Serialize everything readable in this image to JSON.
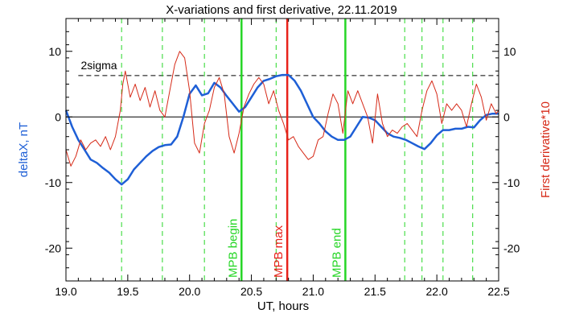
{
  "chart_data": {
    "type": "line",
    "title": "X-variations and first derivative, 22.11.2019",
    "xlabel": "UT, hours",
    "ylabel": "deltaX, nT",
    "ylabel_right": "First derivative*10",
    "xlim": [
      19.0,
      22.5
    ],
    "ylim": [
      -25,
      15
    ],
    "ylim_right": [
      -25,
      15
    ],
    "x_ticks": [
      "19.0",
      "19.5",
      "20.0",
      "20.5",
      "21.0",
      "21.5",
      "22.0",
      "22.5"
    ],
    "y_ticks": [
      "-20",
      "-10",
      "0",
      "10"
    ],
    "y_ticks_right": [
      "-20",
      "-10",
      "0",
      "10"
    ],
    "zero_line": 0,
    "sigma_line": {
      "label": "2sigma",
      "value": 6.3
    },
    "series": [
      {
        "name": "deltaX",
        "color": "#1e5fd6",
        "axis": "left",
        "x": [
          19.0,
          19.05,
          19.1,
          19.15,
          19.2,
          19.25,
          19.3,
          19.35,
          19.4,
          19.45,
          19.5,
          19.55,
          19.6,
          19.65,
          19.7,
          19.75,
          19.8,
          19.85,
          19.9,
          19.95,
          20.0,
          20.05,
          20.1,
          20.15,
          20.2,
          20.25,
          20.3,
          20.35,
          20.4,
          20.45,
          20.5,
          20.55,
          20.6,
          20.65,
          20.7,
          20.75,
          20.8,
          20.85,
          20.9,
          20.95,
          21.0,
          21.05,
          21.1,
          21.15,
          21.2,
          21.25,
          21.3,
          21.35,
          21.4,
          21.45,
          21.5,
          21.55,
          21.6,
          21.65,
          21.7,
          21.75,
          21.8,
          21.85,
          21.9,
          21.95,
          22.0,
          22.05,
          22.1,
          22.15,
          22.2,
          22.25,
          22.3,
          22.35,
          22.4,
          22.45,
          22.5
        ],
        "y": [
          1.0,
          -1.5,
          -3.5,
          -5.0,
          -6.5,
          -7.0,
          -7.8,
          -8.5,
          -9.5,
          -10.3,
          -9.5,
          -8.0,
          -7.0,
          -6.0,
          -5.2,
          -4.6,
          -4.3,
          -4.2,
          -3.0,
          0.0,
          3.5,
          4.8,
          3.3,
          3.6,
          5.2,
          4.5,
          3.2,
          2.0,
          0.8,
          1.5,
          3.0,
          4.5,
          5.5,
          5.8,
          6.2,
          6.4,
          6.4,
          5.5,
          4.0,
          2.0,
          0.0,
          -1.0,
          -2.2,
          -3.0,
          -3.5,
          -3.5,
          -3.0,
          -1.5,
          0.0,
          -0.1,
          -0.5,
          -1.5,
          -2.5,
          -3.0,
          -3.2,
          -3.5,
          -4.0,
          -4.5,
          -4.9,
          -4.0,
          -2.8,
          -2.0,
          -2.0,
          -1.8,
          -1.8,
          -1.5,
          -1.6,
          -0.5,
          0.3,
          0.5,
          0.5
        ]
      },
      {
        "name": "First derivative*10",
        "color": "#d62a18",
        "axis": "right",
        "x": [
          19.0,
          19.04,
          19.08,
          19.12,
          19.16,
          19.2,
          19.24,
          19.28,
          19.32,
          19.36,
          19.4,
          19.44,
          19.46,
          19.48,
          19.52,
          19.56,
          19.6,
          19.64,
          19.68,
          19.72,
          19.76,
          19.8,
          19.84,
          19.88,
          19.92,
          19.96,
          20.0,
          20.04,
          20.08,
          20.12,
          20.16,
          20.2,
          20.24,
          20.28,
          20.32,
          20.36,
          20.4,
          20.44,
          20.48,
          20.52,
          20.56,
          20.6,
          20.64,
          20.68,
          20.72,
          20.76,
          20.8,
          20.84,
          20.88,
          20.92,
          20.96,
          21.0,
          21.04,
          21.08,
          21.12,
          21.16,
          21.2,
          21.24,
          21.28,
          21.32,
          21.36,
          21.4,
          21.44,
          21.48,
          21.52,
          21.56,
          21.6,
          21.64,
          21.68,
          21.72,
          21.76,
          21.8,
          21.84,
          21.88,
          21.92,
          21.96,
          22.0,
          22.04,
          22.08,
          22.12,
          22.16,
          22.2,
          22.24,
          22.28,
          22.32,
          22.36,
          22.4,
          22.44,
          22.48,
          22.5
        ],
        "y": [
          -5.0,
          -7.5,
          -6.0,
          -3.5,
          -5.0,
          -4.0,
          -3.5,
          -4.5,
          -3.0,
          -5.0,
          -3.0,
          1.0,
          5.0,
          7.0,
          3.0,
          5.0,
          2.5,
          4.5,
          1.5,
          4.0,
          1.0,
          0.0,
          4.0,
          8.0,
          10.0,
          9.0,
          4.0,
          -4.0,
          -5.5,
          -1.0,
          1.0,
          4.5,
          6.0,
          3.5,
          -3.0,
          -5.5,
          -2.5,
          1.5,
          3.5,
          5.0,
          6.0,
          5.0,
          2.0,
          4.0,
          1.0,
          -1.0,
          -3.5,
          -3.0,
          -4.5,
          -5.5,
          -6.5,
          -6.0,
          -3.5,
          -3.0,
          0.5,
          3.5,
          2.0,
          -2.5,
          4.0,
          2.0,
          4.0,
          2.0,
          0.0,
          -4.0,
          3.5,
          -1.0,
          -3.0,
          -2.0,
          -2.5,
          -1.5,
          -1.0,
          -2.0,
          -3.0,
          1.0,
          4.0,
          5.5,
          3.5,
          -1.0,
          2.0,
          1.0,
          2.0,
          1.0,
          -1.5,
          2.0,
          5.0,
          3.0,
          -0.5,
          2.0,
          0.5,
          1.0
        ]
      }
    ],
    "markers": [
      {
        "x": 19.45,
        "style": "dashed",
        "color": "#26d626"
      },
      {
        "x": 19.78,
        "style": "dashed",
        "color": "#26d626"
      },
      {
        "x": 20.12,
        "style": "dashed",
        "color": "#26d626"
      },
      {
        "x": 20.42,
        "style": "solid",
        "color": "#26d626",
        "label": "MPB begin"
      },
      {
        "x": 20.7,
        "style": "dashed",
        "color": "#26d626"
      },
      {
        "x": 20.79,
        "style": "solid",
        "color": "#e8221a",
        "label": "MPB max"
      },
      {
        "x": 21.26,
        "style": "solid",
        "color": "#26d626",
        "label": "MPB end"
      },
      {
        "x": 21.74,
        "style": "dashed",
        "color": "#26d626"
      },
      {
        "x": 21.88,
        "style": "dashed",
        "color": "#26d626"
      },
      {
        "x": 22.05,
        "style": "dashed",
        "color": "#26d626"
      },
      {
        "x": 22.29,
        "style": "dashed",
        "color": "#26d626"
      }
    ]
  }
}
